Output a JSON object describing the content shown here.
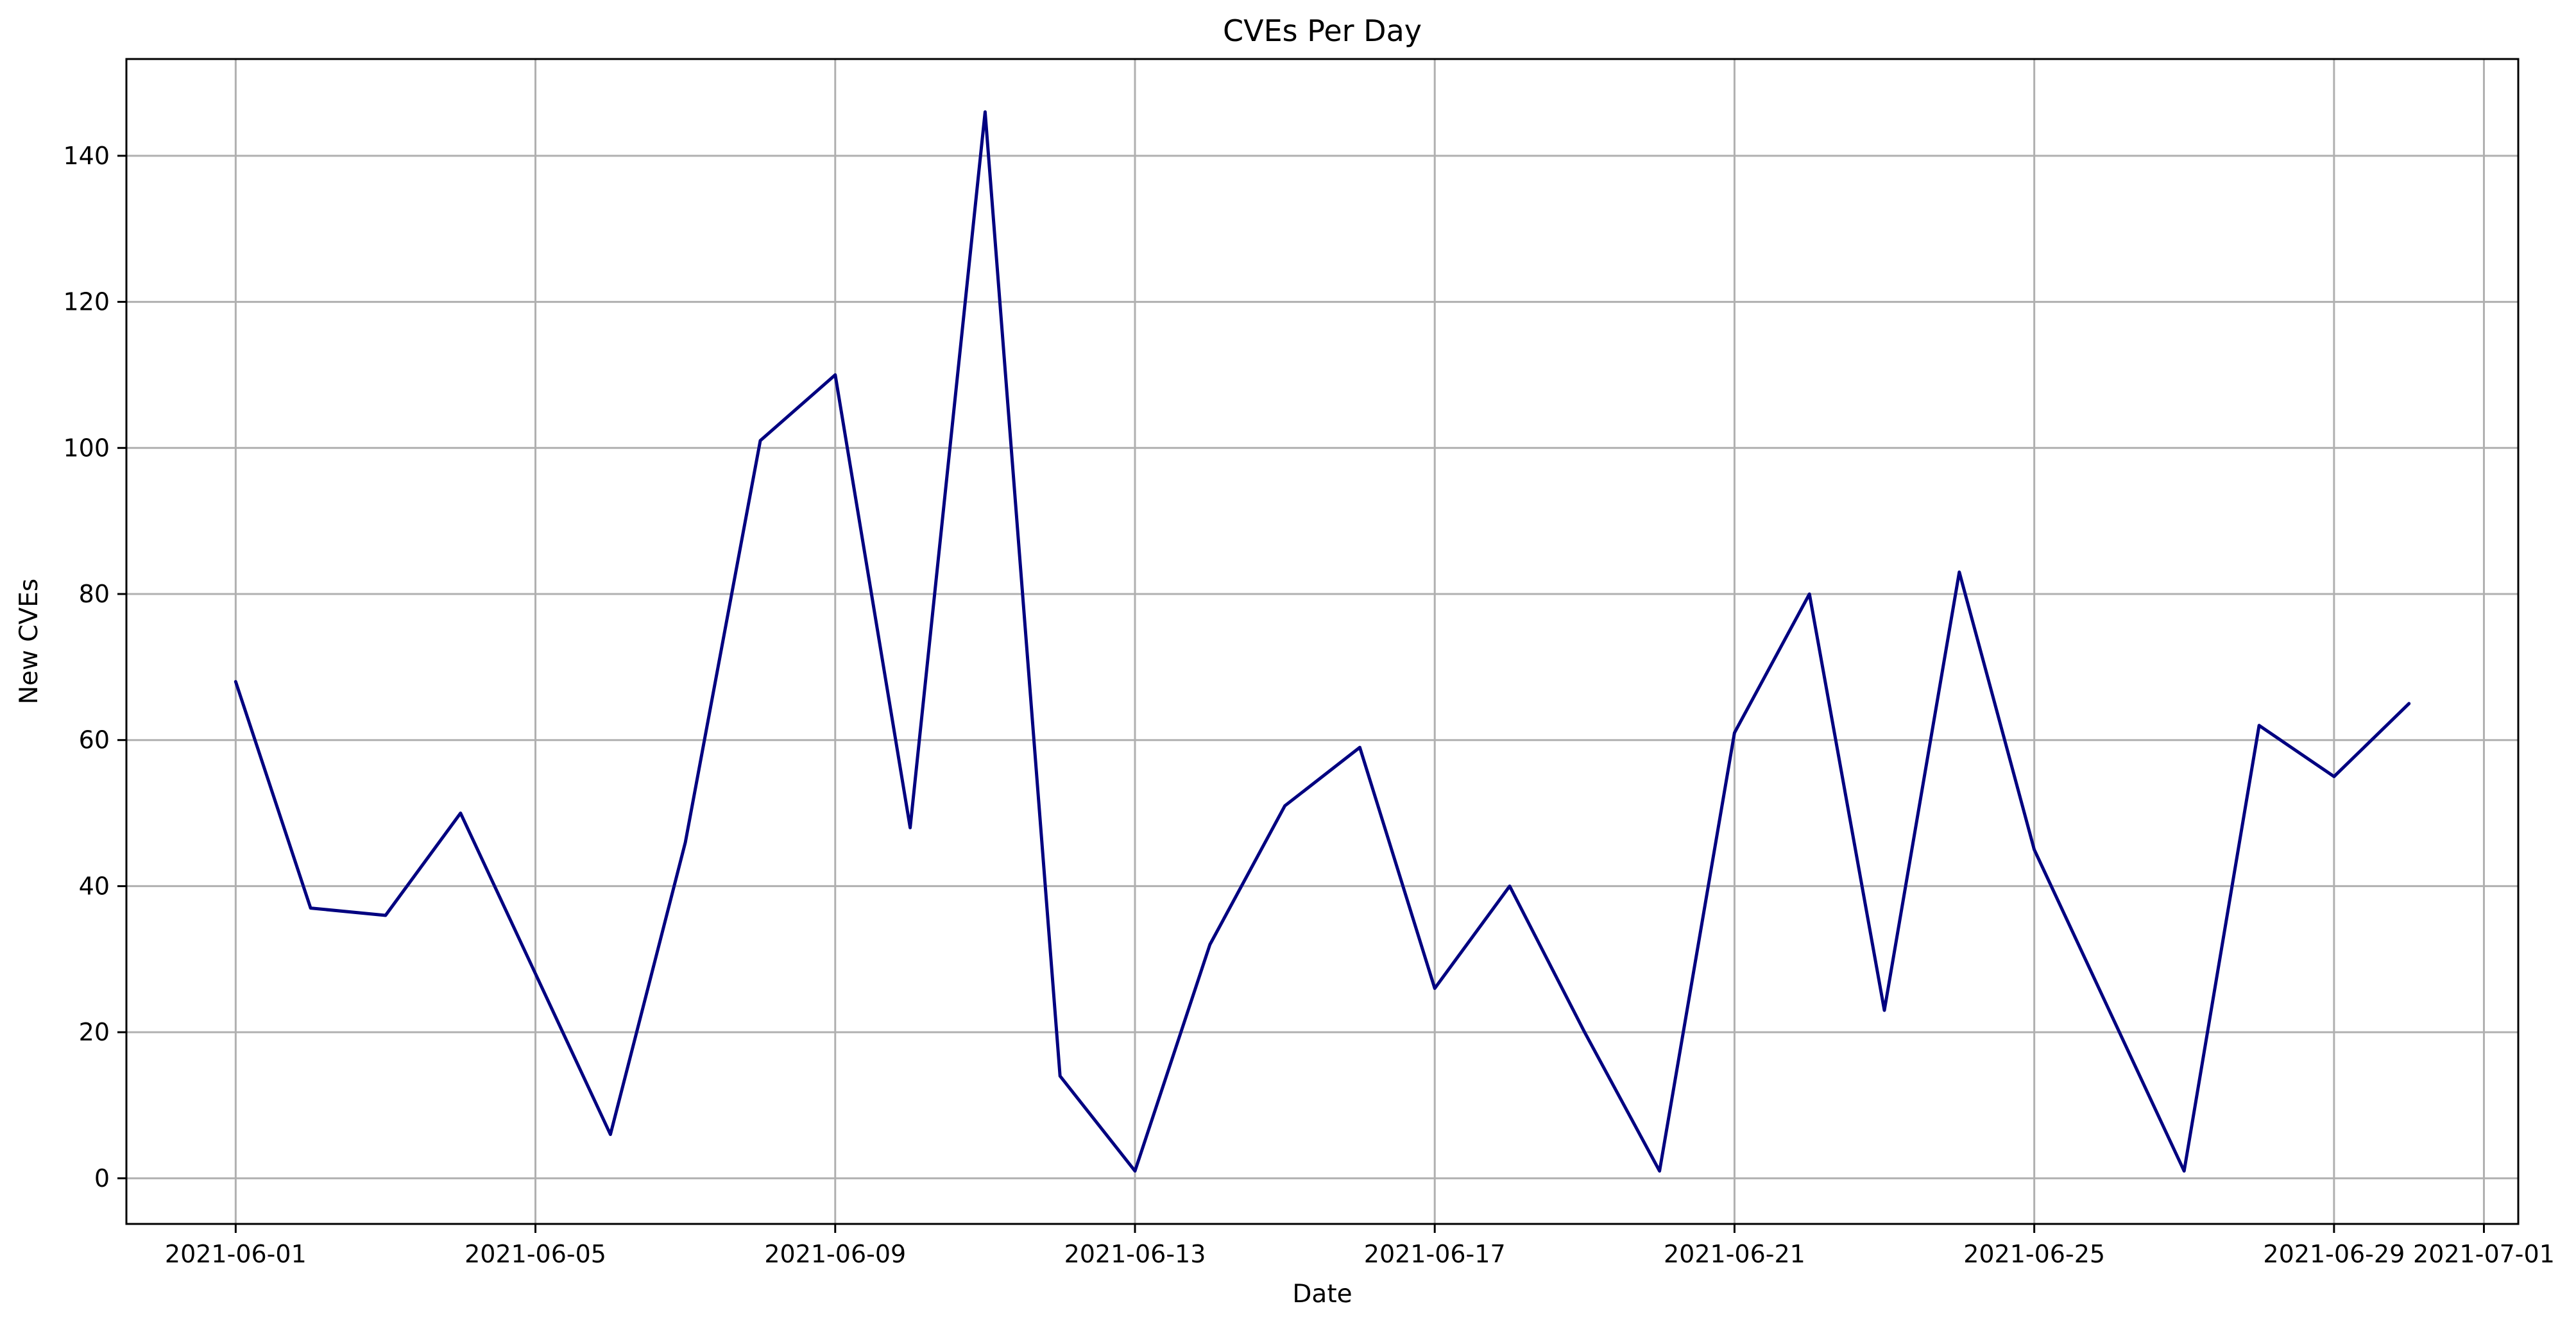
{
  "chart_data": {
    "type": "line",
    "title": "CVEs Per Day",
    "xlabel": "Date",
    "ylabel": "New CVEs",
    "grid": true,
    "line_color": "#000080",
    "xlim": [
      "2021-05-30T13:00",
      "2021-07-01T11:00"
    ],
    "ylim": [
      -6.25,
      153.25
    ],
    "x_ticks": [
      "2021-06-01",
      "2021-06-05",
      "2021-06-09",
      "2021-06-13",
      "2021-06-17",
      "2021-06-21",
      "2021-06-25",
      "2021-06-29",
      "2021-07-01"
    ],
    "y_ticks": [
      0,
      20,
      40,
      60,
      80,
      100,
      120,
      140
    ],
    "series": [
      {
        "x": [
          "2021-06-01",
          "2021-06-02",
          "2021-06-03",
          "2021-06-04",
          "2021-06-05",
          "2021-06-06",
          "2021-06-07",
          "2021-06-08",
          "2021-06-09",
          "2021-06-10",
          "2021-06-11",
          "2021-06-12",
          "2021-06-13",
          "2021-06-14",
          "2021-06-15",
          "2021-06-16",
          "2021-06-17",
          "2021-06-18",
          "2021-06-19",
          "2021-06-20",
          "2021-06-21",
          "2021-06-22",
          "2021-06-23",
          "2021-06-24",
          "2021-06-25",
          "2021-06-26",
          "2021-06-27",
          "2021-06-28",
          "2021-06-29",
          "2021-06-30"
        ],
        "values": [
          68,
          37,
          36,
          50,
          28,
          6,
          46,
          101,
          110,
          48,
          146,
          14,
          1,
          32,
          51,
          59,
          26,
          40,
          20,
          1,
          61,
          80,
          23,
          83,
          45,
          23,
          1,
          62,
          55,
          65
        ]
      }
    ]
  }
}
